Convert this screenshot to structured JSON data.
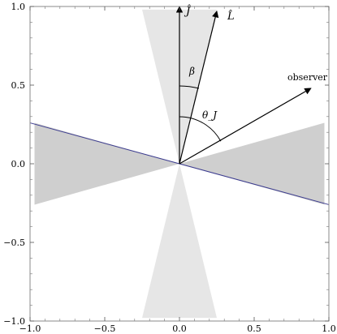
{
  "chart_data": {
    "type": "diagram",
    "title": "",
    "xlabel": "",
    "ylabel": "",
    "xlim": [
      -1.0,
      1.0
    ],
    "ylim": [
      -1.0,
      1.0
    ],
    "x_ticks": [
      "−1.0",
      "−0.5",
      "0.0",
      "0.5",
      "1.0"
    ],
    "y_ticks": [
      "1.0",
      "0.5",
      "0.0",
      "−0.5",
      "−1.0"
    ],
    "vectors": [
      {
        "label": "Ĵ",
        "x": 0.0,
        "y": 1.0
      },
      {
        "label": "L̂",
        "x": 0.25,
        "y": 0.97
      },
      {
        "label": "observer",
        "x": 0.88,
        "y": 0.48
      }
    ],
    "angle_labels": [
      "β",
      "θ_J"
    ],
    "light_cones": [
      {
        "x": [
          -0.25,
          0.25,
          0.0
        ],
        "y": [
          0.98,
          0.98,
          0.0
        ]
      },
      {
        "x": [
          -0.25,
          0.25,
          0.0
        ],
        "y": [
          -0.98,
          -0.98,
          0.0
        ]
      }
    ],
    "dark_cones": [
      {
        "x": [
          -0.97,
          -0.97,
          0.0
        ],
        "y": [
          0.26,
          -0.26,
          0.0
        ]
      },
      {
        "x": [
          0.97,
          0.97,
          0.0
        ],
        "y": [
          0.26,
          -0.26,
          0.0
        ]
      }
    ],
    "line": {
      "x": [
        -1.0,
        1.0
      ],
      "y": [
        0.26,
        -0.26
      ]
    },
    "colors": {
      "light_cone": "#e6e6e6",
      "dark_cone": "#cfcfcf",
      "line": "#3b3b8f",
      "frame": "#888888"
    }
  }
}
